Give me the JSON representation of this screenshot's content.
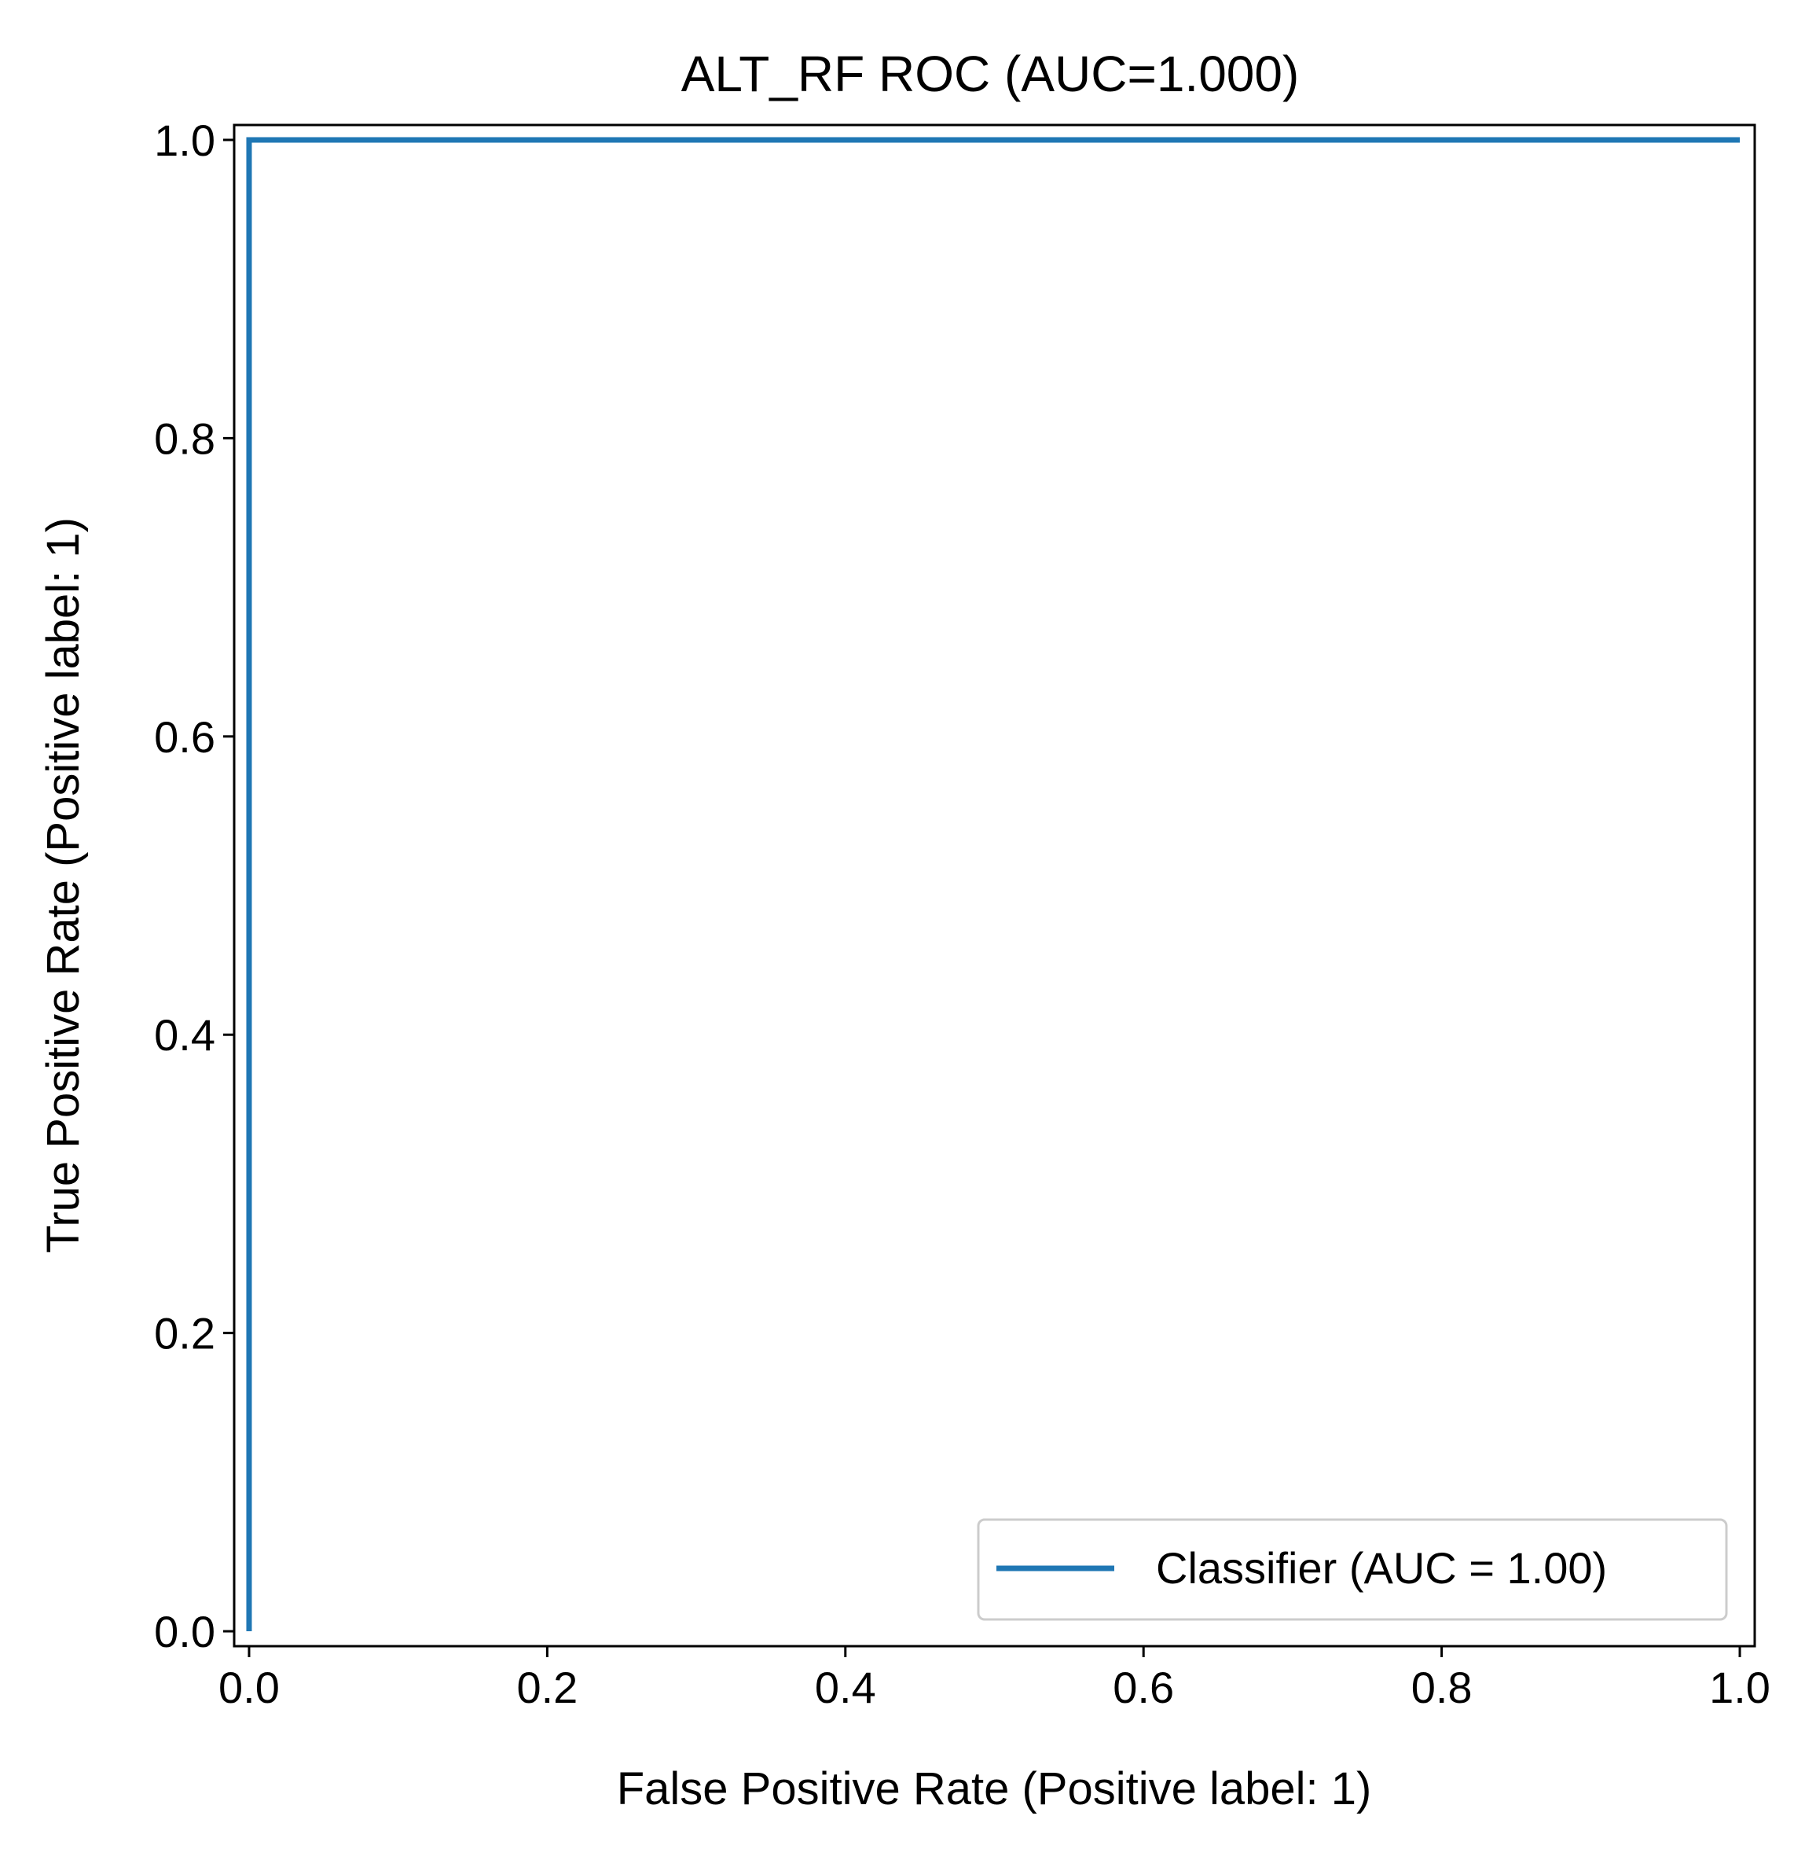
{
  "chart_data": {
    "type": "line",
    "title": "ALT_RF ROC (AUC=1.000)",
    "xlabel": "False Positive Rate (Positive label: 1)",
    "ylabel": "True Positive Rate (Positive label: 1)",
    "xlim": [
      -0.01,
      1.01
    ],
    "ylim": [
      -0.01,
      1.01
    ],
    "x_ticks": [
      0.0,
      0.2,
      0.4,
      0.6,
      0.8,
      1.0
    ],
    "y_ticks": [
      0.0,
      0.2,
      0.4,
      0.6,
      0.8,
      1.0
    ],
    "x_tick_labels": [
      "0.0",
      "0.2",
      "0.4",
      "0.6",
      "0.8",
      "1.0"
    ],
    "y_tick_labels": [
      "0.0",
      "0.2",
      "0.4",
      "0.6",
      "0.8",
      "1.0"
    ],
    "grid": false,
    "legend_position": "bottom-right",
    "series": [
      {
        "name": "Classifier (AUC = 1.00)",
        "color": "#1f77b4",
        "x": [
          0.0,
          0.0,
          1.0
        ],
        "y": [
          0.0,
          1.0,
          1.0
        ]
      }
    ]
  }
}
